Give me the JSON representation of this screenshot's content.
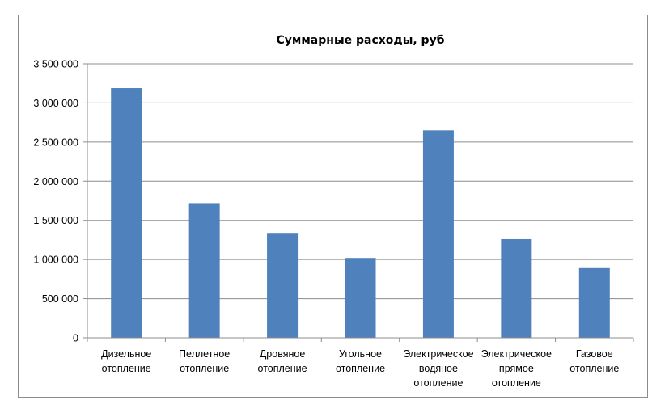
{
  "chart_data": {
    "type": "bar",
    "title": "Суммарные расходы, руб",
    "xlabel": "",
    "ylabel": "",
    "ylim": [
      0,
      3500000
    ],
    "yticks": [
      0,
      500000,
      1000000,
      1500000,
      2000000,
      2500000,
      3000000,
      3500000
    ],
    "ytick_labels": [
      "0",
      "500 000",
      "1 000 000",
      "1 500 000",
      "2 000 000",
      "2 500 000",
      "3 000 000",
      "3 500 000"
    ],
    "grid": true,
    "legend": "none",
    "bar_color": "#4f81bd",
    "categories": [
      [
        "Дизельное",
        "отопление"
      ],
      [
        "Пеллетное",
        "отопление"
      ],
      [
        "Дровяное",
        "отопление"
      ],
      [
        "Угольное",
        "отопление"
      ],
      [
        "Электрическое",
        "водяное",
        "отопление"
      ],
      [
        "Электрическое",
        "прямое",
        "отопление"
      ],
      [
        "Газовое",
        "отопление"
      ]
    ],
    "values": [
      3190000,
      1720000,
      1340000,
      1020000,
      2650000,
      1260000,
      890000
    ]
  }
}
